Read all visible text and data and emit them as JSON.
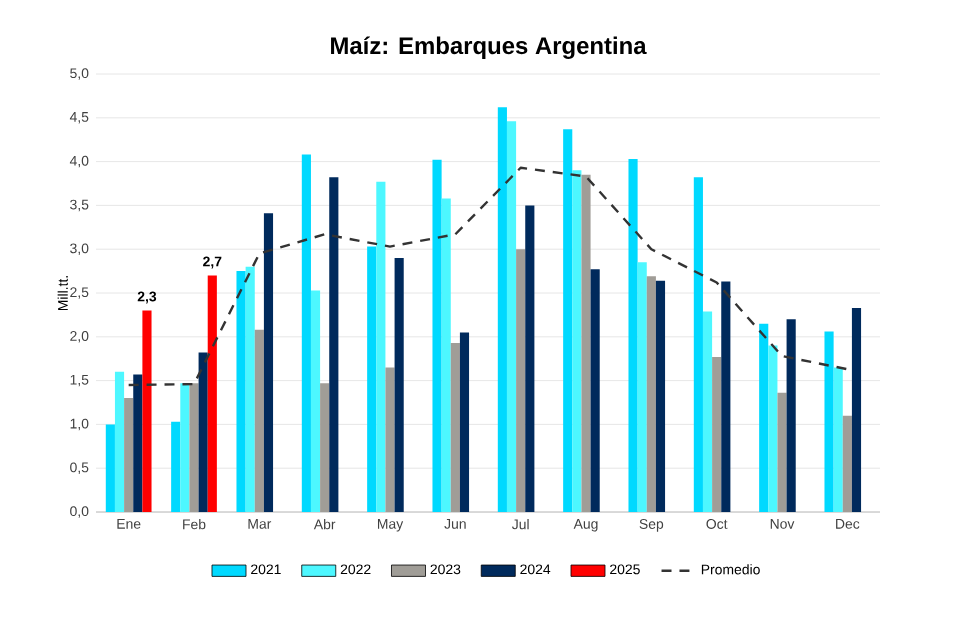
{
  "chart_data": {
    "type": "bar",
    "title": "Maíz: Embarques Argentina",
    "ylabel": "Mill.tt.",
    "categories": [
      "Ene",
      "Feb",
      "Mar",
      "Abr",
      "May",
      "Jun",
      "Jul",
      "Aug",
      "Sep",
      "Oct",
      "Nov",
      "Dec"
    ],
    "series": [
      {
        "name": "2021",
        "color": "#00d9ff",
        "values": [
          1.0,
          1.03,
          2.75,
          4.08,
          3.03,
          4.02,
          4.62,
          4.37,
          4.03,
          3.82,
          2.15,
          2.06
        ]
      },
      {
        "name": "2022",
        "color": "#4df7ff",
        "values": [
          1.6,
          1.47,
          2.8,
          2.53,
          3.77,
          3.58,
          4.46,
          3.9,
          2.85,
          2.29,
          1.9,
          1.65
        ]
      },
      {
        "name": "2023",
        "color": "#a09d97",
        "values": [
          1.3,
          1.47,
          2.08,
          1.47,
          1.65,
          1.93,
          3.0,
          3.85,
          2.69,
          1.77,
          1.36,
          1.1
        ]
      },
      {
        "name": "2024",
        "color": "#002a5c",
        "values": [
          1.57,
          1.82,
          3.41,
          3.82,
          2.9,
          2.05,
          3.5,
          2.77,
          2.64,
          2.63,
          2.2,
          2.33
        ]
      },
      {
        "name": "2025",
        "color": "#ff0000",
        "values": [
          2.3,
          2.7,
          null,
          null,
          null,
          null,
          null,
          null,
          null,
          null,
          null,
          null
        ],
        "value_labels": [
          "2,3",
          "2,7",
          null,
          null,
          null,
          null,
          null,
          null,
          null,
          null,
          null,
          null
        ]
      },
      {
        "name": "Promedio",
        "type": "line",
        "line_style": "dashed",
        "color": "#333333",
        "values": [
          1.45,
          1.46,
          2.95,
          3.17,
          3.03,
          3.17,
          3.93,
          3.83,
          3.0,
          2.62,
          1.78,
          1.63
        ]
      }
    ],
    "ylim": [
      0,
      5
    ],
    "yticks": [
      {
        "value": 0,
        "label": "0,0"
      },
      {
        "value": 0.5,
        "label": "0,5"
      },
      {
        "value": 1,
        "label": "1,0"
      },
      {
        "value": 1.5,
        "label": "1,5"
      },
      {
        "value": 2,
        "label": "2,0"
      },
      {
        "value": 2.5,
        "label": "2,5"
      },
      {
        "value": 3,
        "label": "3,0"
      },
      {
        "value": 3.5,
        "label": "3,5"
      },
      {
        "value": 4,
        "label": "4,0"
      },
      {
        "value": 4.5,
        "label": "4,5"
      },
      {
        "value": 5,
        "label": "5,0"
      }
    ],
    "grid": "y",
    "legend": "bottom",
    "marker": "none"
  }
}
